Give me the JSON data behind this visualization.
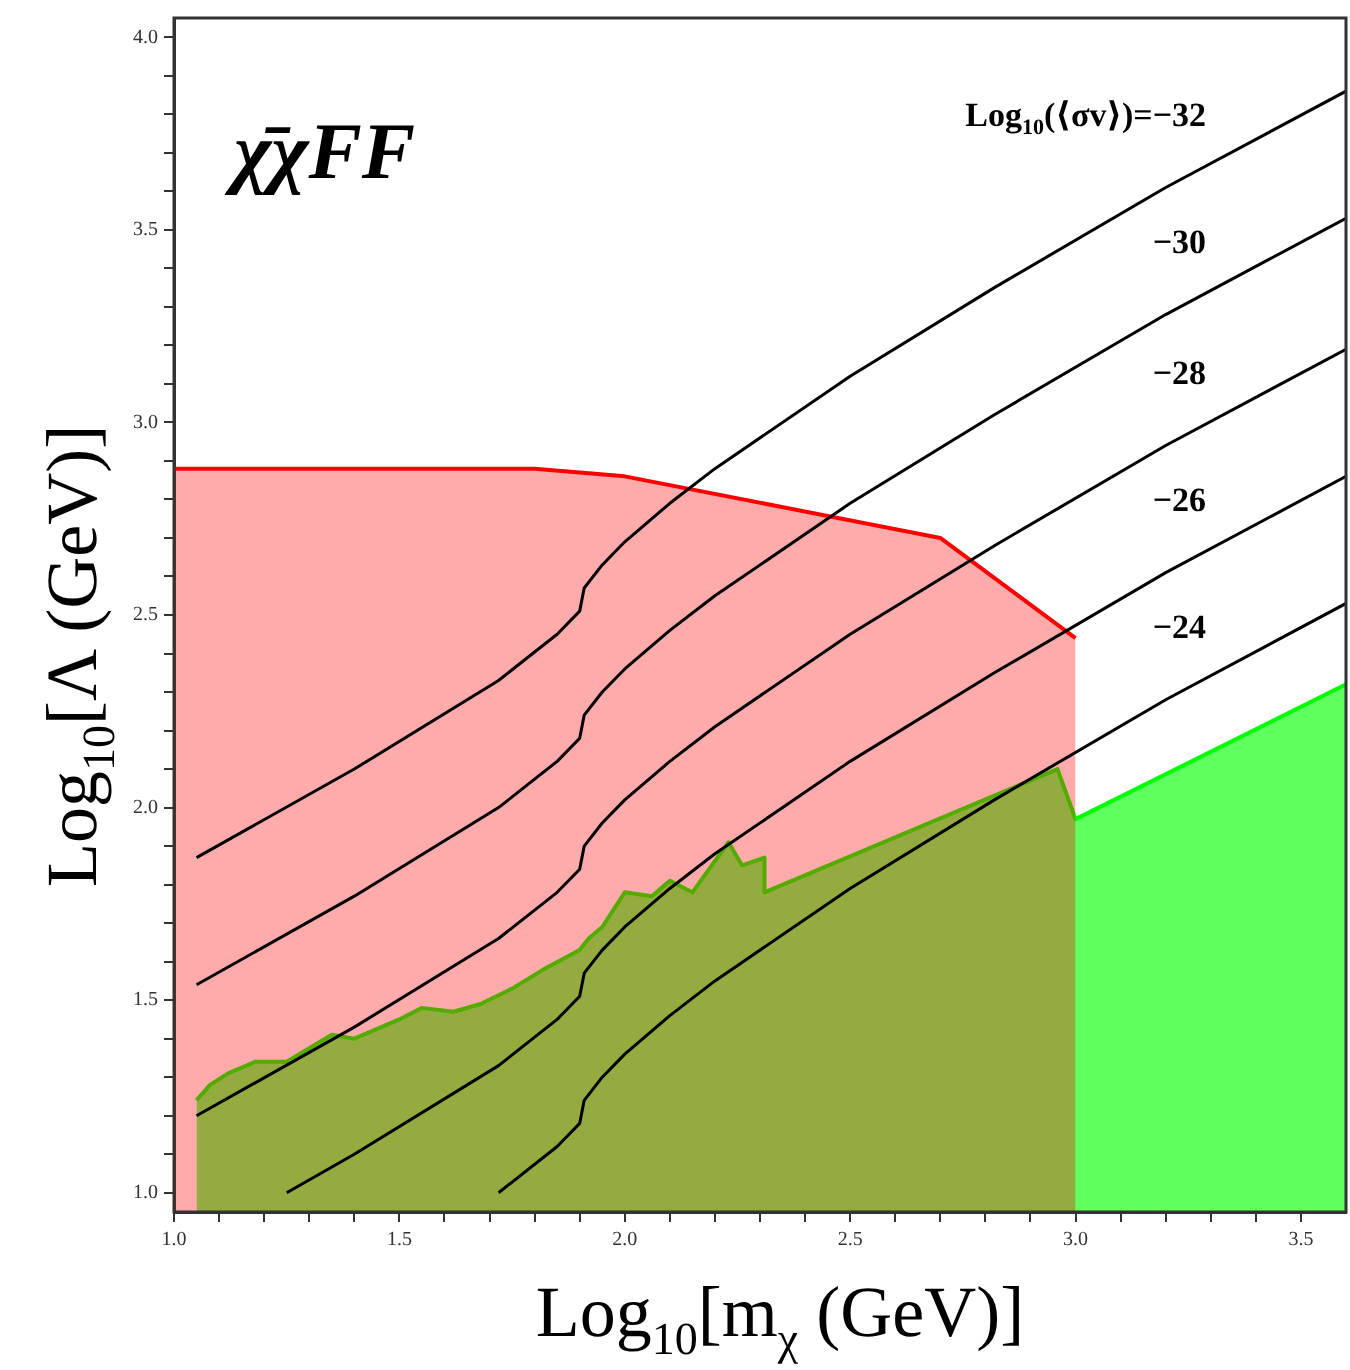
{
  "chart_data": {
    "type": "area",
    "title": "χ̄χFF",
    "xlabel": "Log$_{10}$[m$_{χ}$ (GeV)]",
    "ylabel": "Log$_{10}$[Λ (GeV)]",
    "xlim": [
      1.0,
      3.6
    ],
    "ylim": [
      0.95,
      4.05
    ],
    "xticks": [
      {
        "value": 1.0,
        "label": "1.0"
      },
      {
        "value": 1.1,
        "label": null
      },
      {
        "value": 1.2,
        "label": null
      },
      {
        "value": 1.3,
        "label": null
      },
      {
        "value": 1.4,
        "label": null
      },
      {
        "value": 1.5,
        "label": "1.5"
      },
      {
        "value": 1.6,
        "label": null
      },
      {
        "value": 1.7,
        "label": null
      },
      {
        "value": 1.8,
        "label": null
      },
      {
        "value": 1.9,
        "label": null
      },
      {
        "value": 2.0,
        "label": "2.0"
      },
      {
        "value": 2.1,
        "label": null
      },
      {
        "value": 2.2,
        "label": null
      },
      {
        "value": 2.3,
        "label": null
      },
      {
        "value": 2.4,
        "label": null
      },
      {
        "value": 2.5,
        "label": "2.5"
      },
      {
        "value": 2.6,
        "label": null
      },
      {
        "value": 2.7,
        "label": null
      },
      {
        "value": 2.8,
        "label": null
      },
      {
        "value": 2.9,
        "label": null
      },
      {
        "value": 3.0,
        "label": "3.0"
      },
      {
        "value": 3.1,
        "label": null
      },
      {
        "value": 3.2,
        "label": null
      },
      {
        "value": 3.3,
        "label": null
      },
      {
        "value": 3.4,
        "label": null
      },
      {
        "value": 3.5,
        "label": "3.5"
      }
    ],
    "yticks": [
      {
        "value": 1.0,
        "label": "1.0"
      },
      {
        "value": 1.1,
        "label": null
      },
      {
        "value": 1.2,
        "label": null
      },
      {
        "value": 1.3,
        "label": null
      },
      {
        "value": 1.4,
        "label": null
      },
      {
        "value": 1.5,
        "label": "1.5"
      },
      {
        "value": 1.6,
        "label": null
      },
      {
        "value": 1.7,
        "label": null
      },
      {
        "value": 1.8,
        "label": null
      },
      {
        "value": 1.9,
        "label": null
      },
      {
        "value": 2.0,
        "label": "2.0"
      },
      {
        "value": 2.1,
        "label": null
      },
      {
        "value": 2.2,
        "label": null
      },
      {
        "value": 2.3,
        "label": null
      },
      {
        "value": 2.4,
        "label": null
      },
      {
        "value": 2.5,
        "label": "2.5"
      },
      {
        "value": 2.6,
        "label": null
      },
      {
        "value": 2.7,
        "label": null
      },
      {
        "value": 2.8,
        "label": null
      },
      {
        "value": 2.9,
        "label": null
      },
      {
        "value": 3.0,
        "label": "3.0"
      },
      {
        "value": 3.1,
        "label": null
      },
      {
        "value": 3.2,
        "label": null
      },
      {
        "value": 3.3,
        "label": null
      },
      {
        "value": 3.4,
        "label": null
      },
      {
        "value": 3.5,
        "label": "3.5"
      },
      {
        "value": 3.6,
        "label": null
      },
      {
        "value": 3.7,
        "label": null
      },
      {
        "value": 3.8,
        "label": null
      },
      {
        "value": 3.9,
        "label": null
      },
      {
        "value": 4.0,
        "label": "4.0"
      }
    ],
    "marker": "none",
    "series": [
      {
        "color": "#00ff00",
        "x": [
          1.05,
          1.08,
          1.12,
          1.18,
          1.25,
          1.35,
          1.4,
          1.5,
          1.55,
          1.62,
          1.68,
          1.75,
          1.82,
          1.9,
          1.92,
          1.95,
          2.0,
          2.06,
          2.1,
          2.15,
          2.23,
          2.26,
          2.31,
          2.31,
          2.96,
          3.0,
          3.6
        ],
        "values": [
          1.24,
          1.28,
          1.31,
          1.34,
          1.34,
          1.41,
          1.4,
          1.45,
          1.48,
          1.47,
          1.49,
          1.53,
          1.58,
          1.63,
          1.66,
          1.69,
          1.78,
          1.77,
          1.81,
          1.78,
          1.91,
          1.85,
          1.87,
          1.78,
          2.1,
          1.97,
          2.32
        ]
      },
      {
        "color": "#ff0000",
        "x": [
          1.0,
          1.8,
          2.0,
          2.7,
          3.0
        ],
        "values": [
          2.88,
          2.88,
          2.86,
          2.7,
          2.44
        ]
      },
      {
        "type": "line",
        "name": "Log$_{10}$(⟨σv⟩)=−32",
        "color": "#000000",
        "x": [
          1.05,
          1.4,
          1.72,
          1.85,
          1.9,
          1.91,
          1.95,
          2.0,
          2.1,
          2.2,
          2.5,
          2.82,
          3.2,
          3.6
        ],
        "values": [
          1.87,
          2.1,
          2.33,
          2.45,
          2.51,
          2.57,
          2.63,
          2.69,
          2.79,
          2.88,
          3.12,
          3.35,
          3.61,
          3.86
        ]
      },
      {
        "type": "line",
        "name": "−30",
        "color": "#000000",
        "x": [
          1.05,
          1.4,
          1.72,
          1.85,
          1.9,
          1.91,
          1.95,
          2.0,
          2.1,
          2.2,
          2.5,
          2.82,
          3.2,
          3.6
        ],
        "values": [
          1.54,
          1.77,
          2.0,
          2.12,
          2.18,
          2.24,
          2.3,
          2.36,
          2.46,
          2.55,
          2.79,
          3.02,
          3.28,
          3.53
        ]
      },
      {
        "type": "line",
        "name": "−28",
        "color": "#000000",
        "x": [
          1.05,
          1.4,
          1.72,
          1.85,
          1.9,
          1.91,
          1.95,
          2.0,
          2.1,
          2.2,
          2.5,
          2.82,
          3.2,
          3.6
        ],
        "values": [
          1.2,
          1.43,
          1.66,
          1.78,
          1.84,
          1.9,
          1.96,
          2.02,
          2.12,
          2.21,
          2.45,
          2.68,
          2.94,
          3.19
        ]
      },
      {
        "type": "line",
        "name": "−26",
        "color": "#000000",
        "x": [
          1.25,
          1.4,
          1.72,
          1.85,
          1.9,
          1.91,
          1.95,
          2.0,
          2.1,
          2.2,
          2.5,
          2.82,
          3.2,
          3.6
        ],
        "values": [
          1.0,
          1.1,
          1.33,
          1.45,
          1.51,
          1.57,
          1.63,
          1.69,
          1.79,
          1.88,
          2.12,
          2.35,
          2.61,
          2.86
        ]
      },
      {
        "type": "line",
        "name": "−24",
        "color": "#000000",
        "x": [
          1.72,
          1.85,
          1.9,
          1.91,
          1.95,
          2.0,
          2.1,
          2.2,
          2.5,
          2.82,
          3.2,
          3.6
        ],
        "values": [
          1.0,
          1.12,
          1.18,
          1.24,
          1.3,
          1.36,
          1.46,
          1.55,
          1.79,
          2.02,
          2.28,
          2.53
        ]
      }
    ]
  }
}
